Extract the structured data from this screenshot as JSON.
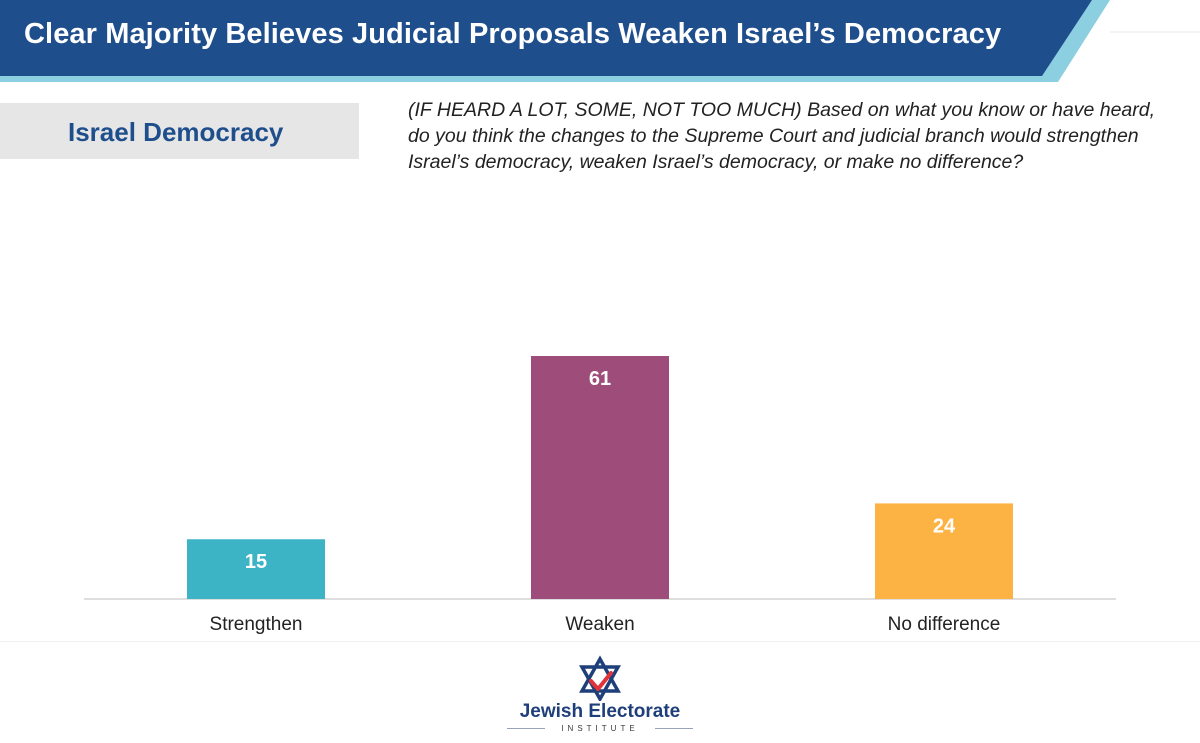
{
  "header": {
    "title": "Clear Majority Believes Judicial Proposals Weaken Israel’s Democracy"
  },
  "section": {
    "label": "Israel Democracy"
  },
  "question": {
    "text": "(IF HEARD A LOT, SOME, NOT TOO MUCH) Based on what you know or have heard, do you think the changes to the Supreme Court and judicial branch would strengthen Israel’s democracy, weaken Israel’s democracy, or make no difference?"
  },
  "colors": {
    "header_bg": "#1f4e8c",
    "header_accent": "#8ccfe0",
    "section_bg": "#e6e6e6",
    "section_text": "#1f4e8c"
  },
  "chart_data": {
    "type": "bar",
    "categories": [
      "Strengthen",
      "Weaken",
      "No difference"
    ],
    "values": [
      15,
      61,
      24
    ],
    "colors": [
      "#3db3c6",
      "#9e4d7a",
      "#fdb344"
    ],
    "ylim": [
      0,
      61
    ],
    "data_labels": true,
    "grid": false,
    "legend": "none"
  },
  "logo": {
    "name": "Jewish Electorate",
    "subtitle": "INSTITUTE",
    "icon": "star-of-david-check-icon"
  }
}
